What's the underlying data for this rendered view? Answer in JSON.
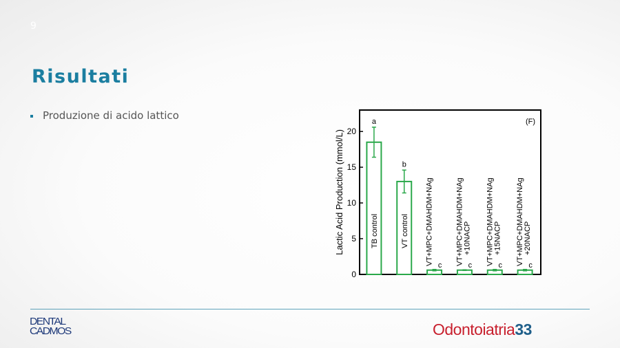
{
  "slide": {
    "number": "9",
    "title": "Risultati",
    "bullets": [
      "Produzione di acido lattico"
    ]
  },
  "footer": {
    "logo_left": [
      "DENTAL",
      "CADMOS"
    ],
    "logo_right_text": "Odontoiatria",
    "logo_right_num": "33"
  },
  "colors": {
    "title": "#1b7ea0",
    "bar": "#2aa84a",
    "logo_left": "#1f3a7a",
    "logo_right": "#c8202e"
  },
  "chart_data": {
    "type": "bar",
    "panel_label": "(F)",
    "ylabel": "Lactic Acid Production (mmol/L)",
    "ylim": [
      0,
      23
    ],
    "yticks": [
      0,
      5,
      10,
      15,
      20
    ],
    "categories": [
      [
        "TB control"
      ],
      [
        "VT control"
      ],
      [
        "VT+MPC+DMAHDM+NAg"
      ],
      [
        "VT+MPC+DMAHDM+NAg",
        "+10NACP"
      ],
      [
        "VT+MPC+DMAHDM+NAg",
        "+15NACP"
      ],
      [
        "VT+MPC+DMAHDM+NAg",
        "+20NACP"
      ]
    ],
    "values": [
      18.5,
      13.0,
      0.6,
      0.6,
      0.6,
      0.6
    ],
    "errors": [
      2.1,
      1.6,
      0.1,
      0.05,
      0.1,
      0.1
    ],
    "significance_letters": [
      "a",
      "b",
      "c",
      "c",
      "c",
      "c"
    ],
    "grid": false
  }
}
